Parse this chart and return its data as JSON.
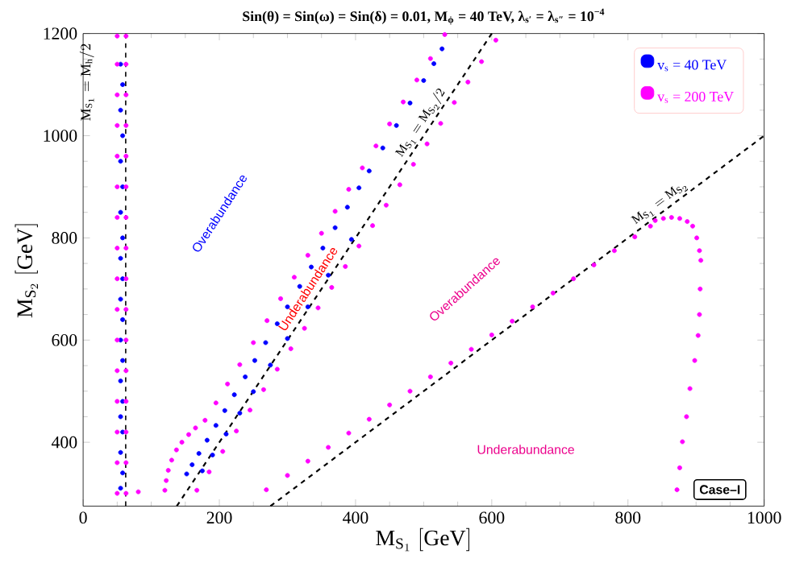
{
  "chart_data": {
    "type": "scatter",
    "title": "Sin(θ) = Sin(ω) = Sin(δ) = 0.01, M$_{ϕ}$ = 40 TeV, λ$_{s′}$ = λ$_{s″}$ = 10$^{−4}$",
    "xlabel": "\\mathrm{M}_{\\mathrm{S}_1}\\ [\\mathrm{GeV}]",
    "ylabel": "\\mathrm{M}_{\\mathrm{S}_2}\\ [\\mathrm{GeV}]",
    "xlim": [
      0,
      1000
    ],
    "ylim": [
      275,
      1200
    ],
    "xticks": [
      0,
      200,
      400,
      600,
      800,
      1000
    ],
    "yticks": [
      400,
      600,
      800,
      1000,
      1200
    ],
    "marker": "circle",
    "legend": "top right",
    "grid": false,
    "series": [
      {
        "name": "v$_{s}$ = 40 TeV",
        "color": "#0000ff",
        "x": [
          55,
          58,
          55,
          58,
          55,
          58,
          55,
          58,
          55,
          58,
          55,
          58,
          55,
          58,
          55,
          58,
          55,
          58,
          55,
          58,
          55,
          152,
          160,
          170,
          182,
          195,
          208,
          222,
          238,
          252,
          268,
          285,
          300,
          318,
          335,
          352,
          370,
          388,
          405,
          420,
          440,
          460,
          480,
          500,
          515,
          527,
          175,
          190,
          210,
          230,
          250,
          275,
          300,
          330,
          360,
          394
        ],
        "values": [
          310,
          340,
          380,
          420,
          450,
          480,
          520,
          560,
          600,
          640,
          680,
          720,
          760,
          800,
          850,
          900,
          950,
          1000,
          1050,
          1100,
          1140,
          338,
          356,
          378,
          404,
          433,
          462,
          493,
          528,
          560,
          595,
          632,
          665,
          705,
          743,
          780,
          820,
          860,
          898,
          931,
          976,
          1020,
          1064,
          1108,
          1141,
          1170,
          344,
          375,
          416,
          457,
          499,
          551,
          603,
          665,
          727,
          797
        ]
      },
      {
        "name": "v$_{s}$ = 200 TeV",
        "color": "#ff00ff",
        "x": [
          50,
          50,
          50,
          50,
          50,
          50,
          50,
          50,
          50,
          50,
          50,
          50,
          50,
          50,
          50,
          50,
          63,
          63,
          63,
          63,
          63,
          63,
          63,
          63,
          63,
          63,
          63,
          63,
          63,
          63,
          63,
          63,
          81,
          120,
          122,
          125,
          130,
          137,
          145,
          155,
          165,
          179,
          195,
          212,
          230,
          250,
          270,
          290,
          310,
          330,
          350,
          370,
          390,
          410,
          430,
          450,
          470,
          490,
          510,
          531,
          167,
          185,
          205,
          225,
          245,
          265,
          285,
          305,
          325,
          345,
          365,
          385,
          405,
          425,
          445,
          465,
          485,
          505,
          525,
          545,
          565,
          585,
          606,
          269,
          300,
          330,
          360,
          390,
          420,
          450,
          480,
          510,
          540,
          570,
          600,
          630,
          660,
          690,
          720,
          750,
          780,
          810,
          833,
          840,
          852,
          864,
          876,
          887,
          895,
          901,
          905,
          907,
          906,
          905,
          903,
          898,
          891,
          886,
          880,
          876,
          872
        ],
        "values": [
          300,
          360,
          420,
          480,
          540,
          600,
          660,
          720,
          780,
          840,
          900,
          960,
          1020,
          1080,
          1140,
          1195,
          300,
          360,
          420,
          480,
          540,
          600,
          660,
          720,
          780,
          840,
          900,
          960,
          1020,
          1080,
          1140,
          1195,
          303,
          306,
          325,
          345,
          365,
          385,
          400,
          415,
          428,
          443,
          477,
          514,
          552,
          595,
          638,
          681,
          723,
          766,
          809,
          852,
          895,
          937,
          980,
          1023,
          1066,
          1109,
          1151,
          1198,
          306,
          342,
          382,
          422,
          463,
          503,
          543,
          583,
          623,
          663,
          703,
          744,
          784,
          824,
          864,
          904,
          944,
          984,
          1024,
          1065,
          1105,
          1145,
          1187,
          307,
          335,
          363,
          390,
          418,
          445,
          473,
          500,
          528,
          555,
          582,
          610,
          637,
          665,
          692,
          720,
          747,
          775,
          802,
          823,
          834,
          838,
          840,
          838,
          832,
          823,
          800,
          775,
          756,
          700,
          650,
          609,
          560,
          505,
          450,
          401,
          350,
          307
        ]
      },
      {
        "type": "line",
        "name": "\\mathrm{M}_{\\mathrm{S}_1} = \\mathrm{M}_{\\mathrm{S}_2}/2",
        "color": "#000000",
        "line_style": "dashed",
        "marker": "none",
        "x": [
          137.5,
          600
        ],
        "values": [
          275,
          1200
        ]
      },
      {
        "type": "line",
        "name": "\\mathrm{M}_{\\mathrm{S}_1} = \\mathrm{M}_{\\mathrm{S}_2}",
        "color": "#000000",
        "line_style": "dashed",
        "marker": "none",
        "x": [
          275,
          1000
        ],
        "values": [
          275,
          1000
        ]
      }
    ],
    "ref_lines": [
      {
        "axis": "x",
        "value": 62.5,
        "label": "\\mathrm{M}_{\\mathrm{S}_1} = \\mathrm{M}_\\mathrm{h}/2",
        "color": "#000000",
        "line_style": "dashed"
      }
    ],
    "annotations": [
      "Overabundance",
      "Underabundance",
      "Overabundance",
      "Underabundance",
      "Case–I"
    ]
  }
}
